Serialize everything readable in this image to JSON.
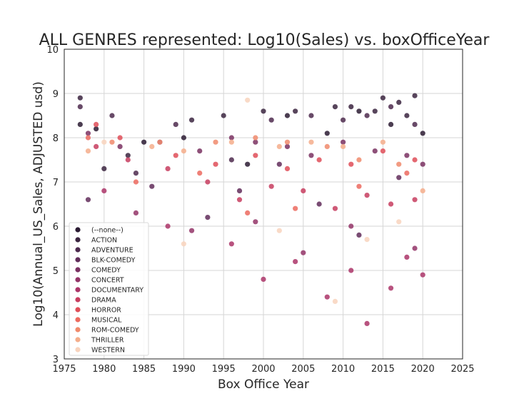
{
  "chart_data": {
    "type": "scatter",
    "title": "ALL GENRES represented: Log10(Sales) vs. boxOfficeYear",
    "xlabel": "Box Office Year",
    "ylabel": "Log10(Annual_US_Sales, ADJUSTED usd)",
    "xlim": [
      1975,
      2025
    ],
    "ylim": [
      3,
      10
    ],
    "xticks": [
      1975,
      1980,
      1985,
      1990,
      1995,
      2000,
      2005,
      2010,
      2015,
      2020,
      2025
    ],
    "yticks": [
      3,
      4,
      5,
      6,
      7,
      8,
      9,
      10
    ],
    "x_tick_labels": [
      "1975",
      "1980",
      "1985",
      "1990",
      "1995",
      "2000",
      "2005",
      "2010",
      "2015",
      "2020",
      "2025"
    ],
    "y_tick_labels": [
      "3",
      "4",
      "5",
      "6",
      "7",
      "8",
      "9",
      "10"
    ],
    "grid": true,
    "legend_position": "lower-left",
    "series": [
      {
        "name": "(--none--)",
        "color": "#2b1b33",
        "points": [
          [
            1977,
            8.3
          ],
          [
            1979,
            8.2
          ],
          [
            1985,
            7.9
          ],
          [
            1990,
            8.0
          ],
          [
            1998,
            7.4
          ],
          [
            2003,
            8.5
          ],
          [
            2008,
            8.1
          ],
          [
            2012,
            8.6
          ],
          [
            2016,
            8.3
          ],
          [
            2020,
            8.1
          ]
        ]
      },
      {
        "name": "ACTION",
        "color": "#3b2540",
        "points": [
          [
            1977,
            8.9
          ],
          [
            1980,
            7.3
          ],
          [
            1983,
            7.6
          ],
          [
            1991,
            8.4
          ],
          [
            1995,
            8.5
          ],
          [
            2000,
            8.6
          ],
          [
            2004,
            8.6
          ],
          [
            2009,
            8.7
          ],
          [
            2011,
            8.7
          ],
          [
            2014,
            8.6
          ],
          [
            2015,
            8.9
          ],
          [
            2017,
            8.8
          ],
          [
            2018,
            8.5
          ],
          [
            2019,
            8.95
          ]
        ]
      },
      {
        "name": "ADVENTURE",
        "color": "#4d2a4e",
        "points": [
          [
            1977,
            8.7
          ],
          [
            1981,
            8.5
          ],
          [
            1984,
            7.2
          ],
          [
            1989,
            8.3
          ],
          [
            1996,
            7.5
          ],
          [
            2001,
            8.4
          ],
          [
            2006,
            8.5
          ],
          [
            2010,
            8.4
          ],
          [
            2013,
            8.5
          ],
          [
            2016,
            8.7
          ],
          [
            2019,
            8.3
          ]
        ]
      },
      {
        "name": "BLK-COMEDY",
        "color": "#612d5a",
        "points": [
          [
            1978,
            6.6
          ],
          [
            1986,
            6.9
          ],
          [
            1993,
            6.2
          ],
          [
            1997,
            6.8
          ],
          [
            2002,
            7.4
          ],
          [
            2007,
            6.5
          ],
          [
            2012,
            5.8
          ],
          [
            2017,
            7.1
          ]
        ]
      },
      {
        "name": "COMEDY",
        "color": "#7a3162",
        "points": [
          [
            1978,
            8.1
          ],
          [
            1982,
            7.8
          ],
          [
            1987,
            7.9
          ],
          [
            1992,
            7.7
          ],
          [
            1996,
            8.0
          ],
          [
            1999,
            7.9
          ],
          [
            2003,
            7.8
          ],
          [
            2006,
            7.6
          ],
          [
            2010,
            7.9
          ],
          [
            2014,
            7.7
          ],
          [
            2018,
            7.6
          ],
          [
            2020,
            7.4
          ]
        ]
      },
      {
        "name": "CONCERT",
        "color": "#933467",
        "points": [
          [
            1984,
            6.3
          ],
          [
            1991,
            5.9
          ],
          [
            1999,
            6.1
          ],
          [
            2005,
            5.4
          ],
          [
            2011,
            6.0
          ],
          [
            2019,
            5.5
          ]
        ]
      },
      {
        "name": "DOCUMENTARY",
        "color": "#ab3568",
        "points": [
          [
            1980,
            6.8
          ],
          [
            1988,
            6.0
          ],
          [
            1996,
            5.6
          ],
          [
            2000,
            4.8
          ],
          [
            2004,
            5.2
          ],
          [
            2008,
            4.4
          ],
          [
            2011,
            5.0
          ],
          [
            2013,
            3.8
          ],
          [
            2016,
            4.6
          ],
          [
            2018,
            5.3
          ],
          [
            2020,
            4.9
          ]
        ]
      },
      {
        "name": "DRAMA",
        "color": "#c73d5f",
        "points": [
          [
            1979,
            7.8
          ],
          [
            1983,
            7.5
          ],
          [
            1988,
            7.3
          ],
          [
            1993,
            7.0
          ],
          [
            1997,
            6.6
          ],
          [
            2001,
            6.9
          ],
          [
            2005,
            6.8
          ],
          [
            2009,
            6.4
          ],
          [
            2013,
            6.7
          ],
          [
            2016,
            6.5
          ],
          [
            2019,
            6.6
          ]
        ]
      },
      {
        "name": "HORROR",
        "color": "#df4e58",
        "points": [
          [
            1979,
            8.3
          ],
          [
            1982,
            8.0
          ],
          [
            1989,
            7.6
          ],
          [
            1994,
            7.4
          ],
          [
            1999,
            7.6
          ],
          [
            2003,
            7.3
          ],
          [
            2007,
            7.5
          ],
          [
            2011,
            7.4
          ],
          [
            2015,
            7.7
          ],
          [
            2019,
            7.5
          ]
        ]
      },
      {
        "name": "MUSICAL",
        "color": "#ec6a5f",
        "points": [
          [
            1978,
            8.0
          ],
          [
            1984,
            7.0
          ],
          [
            1992,
            7.2
          ],
          [
            1998,
            6.3
          ],
          [
            2004,
            6.4
          ],
          [
            2012,
            6.9
          ],
          [
            2018,
            7.2
          ]
        ]
      },
      {
        "name": "ROM-COMEDY",
        "color": "#f08a6c",
        "points": [
          [
            1981,
            7.9
          ],
          [
            1987,
            7.9
          ],
          [
            1994,
            7.9
          ],
          [
            1999,
            8.0
          ],
          [
            2003,
            7.9
          ],
          [
            2008,
            7.8
          ],
          [
            2012,
            7.5
          ],
          [
            2017,
            7.4
          ]
        ]
      },
      {
        "name": "THRILLER",
        "color": "#f4ad8b",
        "points": [
          [
            1978,
            7.7
          ],
          [
            1986,
            7.8
          ],
          [
            1990,
            7.7
          ],
          [
            1996,
            7.9
          ],
          [
            2002,
            7.8
          ],
          [
            2006,
            7.9
          ],
          [
            2010,
            7.8
          ],
          [
            2015,
            7.9
          ],
          [
            2020,
            6.8
          ]
        ]
      },
      {
        "name": "WESTERN",
        "color": "#f8d3bd",
        "points": [
          [
            1980,
            7.9
          ],
          [
            1990,
            5.6
          ],
          [
            1998,
            8.85
          ],
          [
            2002,
            5.9
          ],
          [
            2009,
            4.3
          ],
          [
            2013,
            5.7
          ],
          [
            2017,
            6.1
          ]
        ]
      }
    ]
  }
}
